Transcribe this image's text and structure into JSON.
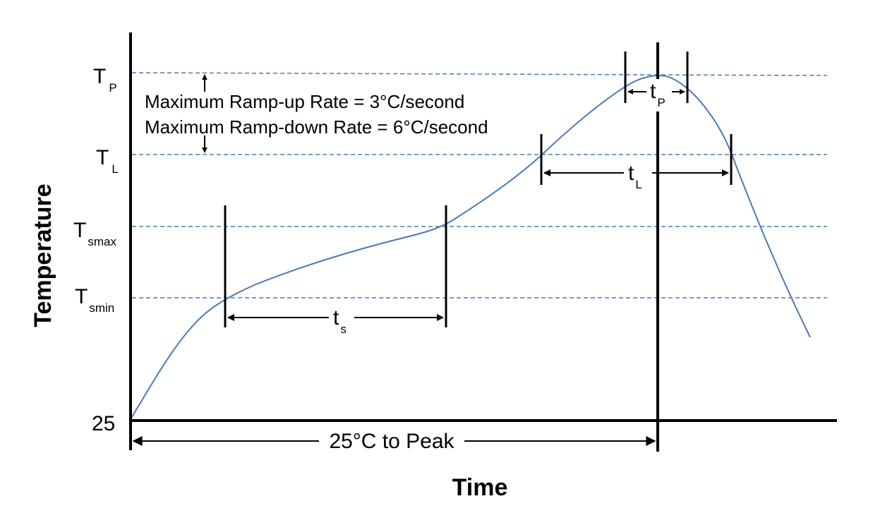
{
  "axes": {
    "x_title": "Time",
    "y_title": "Temperature",
    "y_origin_label": "25"
  },
  "levels": [
    {
      "id": "tp",
      "symbol": "T",
      "subscript": "P"
    },
    {
      "id": "tl",
      "symbol": "T",
      "subscript": "L"
    },
    {
      "id": "tsmax",
      "symbol": "T",
      "subscript": "smax"
    },
    {
      "id": "tsmin",
      "symbol": "T",
      "subscript": "smin"
    }
  ],
  "notes": {
    "ramp_up": "Maximum Ramp-up Rate = 3°C/second",
    "ramp_down": "Maximum Ramp-down Rate = 6°C/second"
  },
  "intervals": [
    {
      "id": "tp",
      "symbol": "t",
      "subscript": "P"
    },
    {
      "id": "tl",
      "symbol": "t",
      "subscript": "L"
    },
    {
      "id": "ts",
      "symbol": "t",
      "subscript": "s"
    },
    {
      "id": "to_peak",
      "label": "25°C to Peak"
    }
  ],
  "colors": {
    "curve": "#4a7ab5",
    "guides": "#4a7ab5",
    "axes": "#000000"
  }
}
